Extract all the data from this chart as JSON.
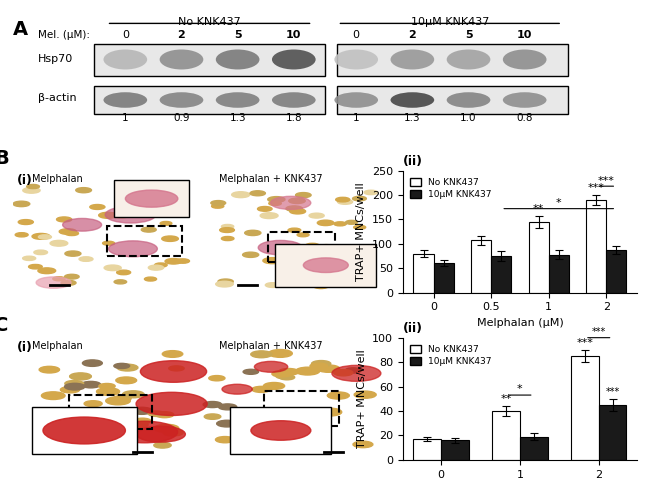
{
  "title": "",
  "panel_A": {
    "label": "A",
    "no_knk_label": "No KNK437",
    "knk_label": "10μM KNK437",
    "mel_label": "Mel. (μM):",
    "mel_values_no": [
      "0",
      "2",
      "5",
      "10"
    ],
    "mel_values_knk": [
      "0",
      "2",
      "5",
      "10"
    ],
    "hsp70_label": "Hsp70",
    "bactin_label": "β-actin",
    "ratio_values": [
      "1",
      "0.9",
      "1.3",
      "1.8",
      "1",
      "1.3",
      "1.0",
      "0.8"
    ]
  },
  "panel_B_chart": {
    "label": "(ii)",
    "panel_label": "B",
    "categories": [
      0,
      0.5,
      1,
      2
    ],
    "no_knk_means": [
      80,
      107,
      145,
      190
    ],
    "no_knk_errors": [
      8,
      10,
      12,
      10
    ],
    "knk_means": [
      60,
      75,
      78,
      87
    ],
    "knk_errors": [
      6,
      10,
      10,
      8
    ],
    "ylabel": "TRAP+ MNCs/well",
    "xlabel": "Melphalan (μM)",
    "ylim": [
      0,
      250
    ],
    "yticks": [
      0,
      50,
      100,
      150,
      200,
      250
    ]
  },
  "panel_C_chart": {
    "label": "(ii)",
    "panel_label": "C",
    "categories": [
      0,
      1,
      2
    ],
    "no_knk_means": [
      17,
      40,
      85
    ],
    "no_knk_errors": [
      2,
      4,
      5
    ],
    "knk_means": [
      16,
      19,
      45
    ],
    "knk_errors": [
      2,
      3,
      5
    ],
    "ylabel": "TRAP+ MNCs/well",
    "xlabel": "Melphalan (μM)",
    "ylim": [
      0,
      100
    ],
    "yticks": [
      0,
      20,
      40,
      60,
      80,
      100
    ]
  },
  "bar_colors": {
    "no_knk": "#ffffff",
    "knk": "#1a1a1a"
  },
  "legend_labels": [
    "No KNK437",
    "10μM KNK437"
  ],
  "bar_width": 0.35,
  "font_size_label": 9,
  "font_size_tick": 8,
  "font_size_panel": 12
}
